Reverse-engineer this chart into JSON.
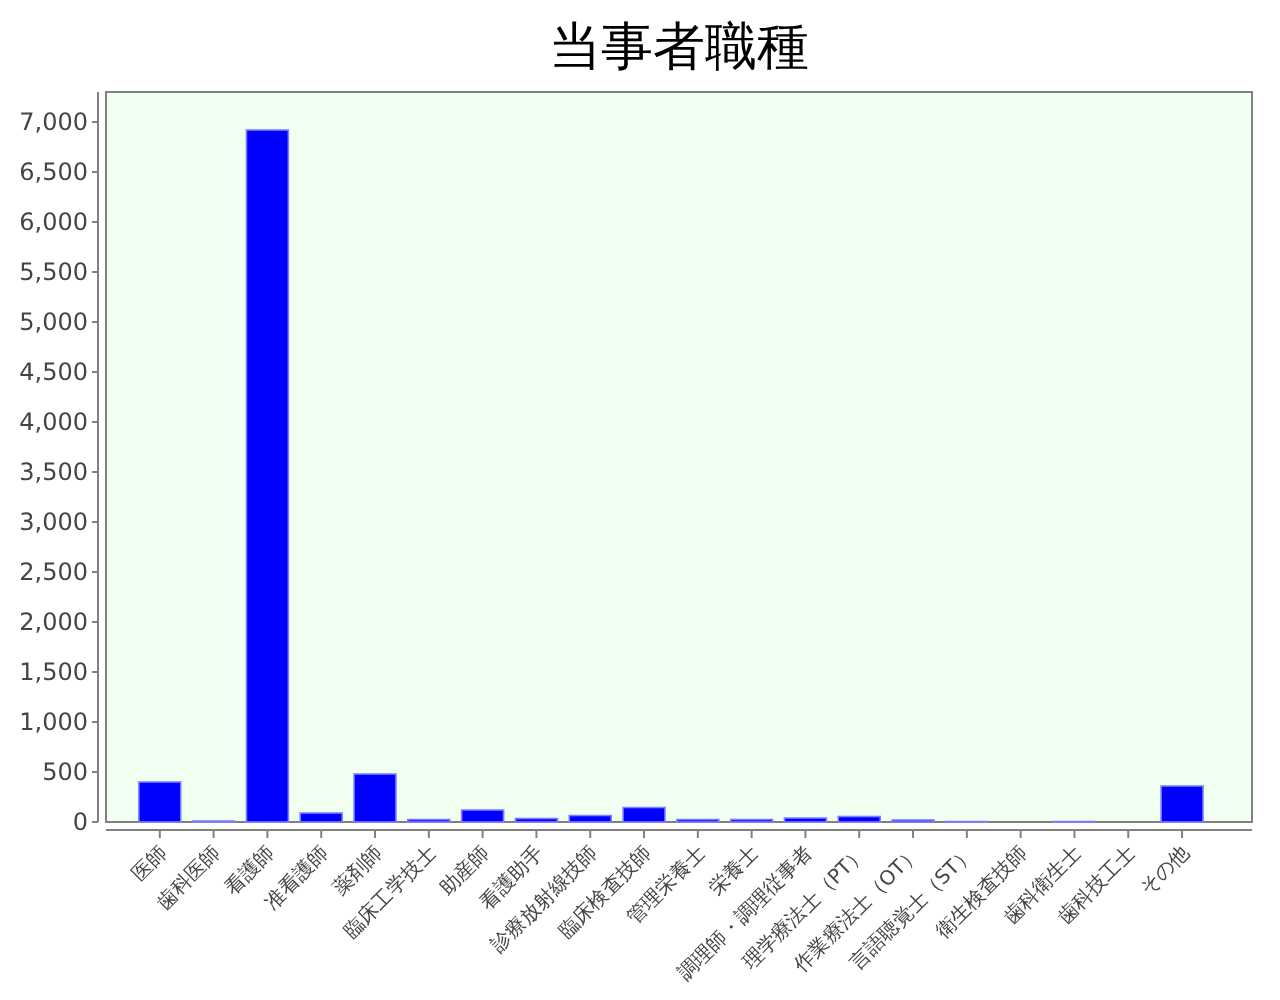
{
  "chart_data": {
    "type": "bar",
    "title": "当事者職種",
    "categories": [
      "医師",
      "歯科医師",
      "看護師",
      "准看護師",
      "薬剤師",
      "臨床工学技士",
      "助産師",
      "看護助手",
      "診療放射線技師",
      "臨床検査技師",
      "管理栄養士",
      "栄養士",
      "調理師・調理従事者",
      "理学療法士（PT）",
      "作業療法士（OT）",
      "言語聴覚士（ST）",
      "衛生検査技師",
      "歯科衛生士",
      "歯科技工士",
      "その他"
    ],
    "values": [
      400,
      10,
      6920,
      90,
      480,
      25,
      120,
      35,
      65,
      145,
      25,
      25,
      40,
      55,
      20,
      5,
      0,
      5,
      0,
      360
    ],
    "color": "#0000ff",
    "ylim": [
      0,
      7300
    ],
    "yticks": [
      0,
      500,
      {
        "value": 1000,
        "label": "1,000"
      },
      {
        "value": 1500,
        "label": "1,500"
      },
      {
        "value": 2000,
        "label": "2,000"
      },
      {
        "value": 2500,
        "label": "2,500"
      },
      {
        "value": 3000,
        "label": "3,000"
      },
      {
        "value": 3500,
        "label": "3,500"
      },
      {
        "value": 4000,
        "label": "4,000"
      },
      {
        "value": 4500,
        "label": "4,500"
      },
      {
        "value": 5000,
        "label": "5,000"
      },
      {
        "value": 5500,
        "label": "5,500"
      },
      {
        "value": 6000,
        "label": "6,000"
      },
      {
        "value": 6500,
        "label": "6,500"
      },
      {
        "value": 7000,
        "label": "7,000"
      }
    ]
  }
}
